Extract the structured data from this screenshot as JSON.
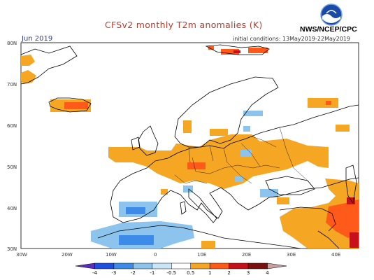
{
  "header": {
    "title": "CFSv2 monthly T2m anomalies (K)",
    "month": "Jun 2019",
    "initial_conditions": "initial conditions: 13May2019-22May2019",
    "agency": "NWS/NCEP/CPC"
  },
  "axes": {
    "lat_labels": [
      "30N",
      "40N",
      "50N",
      "60N",
      "70N",
      "80N"
    ],
    "lon_labels": [
      "30W",
      "20W",
      "10W",
      "0",
      "10E",
      "20E",
      "30E",
      "40E"
    ]
  },
  "colorbar": {
    "tick_labels": [
      "-4",
      "-3",
      "-2",
      "-1",
      "-0.5",
      "0.5",
      "1",
      "2",
      "3",
      "4"
    ],
    "colors": [
      "#5a2fc0",
      "#1f4fe0",
      "#3d8be8",
      "#8dc4ee",
      "#c9e6f7",
      "#ffffff",
      "#f5a623",
      "#ff5a1a",
      "#c8101a",
      "#7a0f0f",
      "#c9a0a0"
    ]
  },
  "anomaly_regions": [
    {
      "region": "Iceland",
      "level": "1 to 2"
    },
    {
      "region": "Central and Eastern Europe",
      "level": "0.5 to 1"
    },
    {
      "region": "Iberian Peninsula and North Africa",
      "level": "-0.5 to -2"
    },
    {
      "region": "Middle East",
      "level": "1 to 3"
    }
  ]
}
